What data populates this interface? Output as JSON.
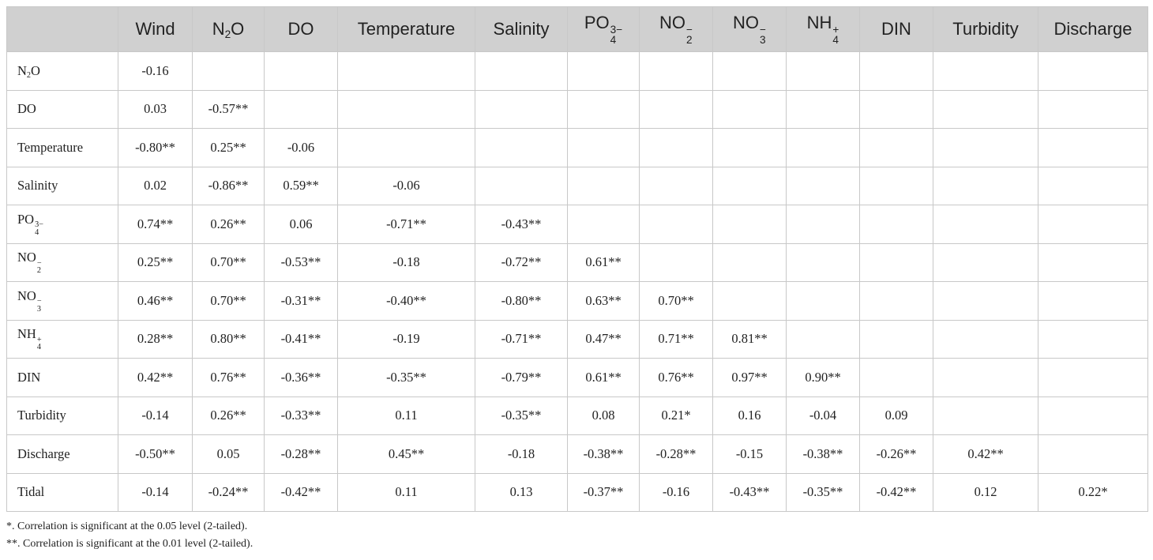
{
  "table": {
    "corner": "",
    "columns": [
      {
        "base": "Wind"
      },
      {
        "base": "N",
        "sub": "2",
        "tail": "O"
      },
      {
        "base": "DO"
      },
      {
        "base": "Temperature"
      },
      {
        "base": "Salinity"
      },
      {
        "base": "PO",
        "sup": "3−",
        "sub": "4"
      },
      {
        "base": "NO",
        "sup": "−",
        "sub": "2"
      },
      {
        "base": "NO",
        "sup": "−",
        "sub": "3"
      },
      {
        "base": "NH",
        "sup": "+",
        "sub": "4"
      },
      {
        "base": "DIN"
      },
      {
        "base": "Turbidity"
      },
      {
        "base": "Discharge"
      }
    ],
    "rows": [
      {
        "label": {
          "base": "N",
          "sub": "2",
          "tail": "O"
        },
        "values": [
          "-0.16"
        ]
      },
      {
        "label": {
          "base": "DO"
        },
        "values": [
          "0.03",
          "-0.57**"
        ]
      },
      {
        "label": {
          "base": "Temperature"
        },
        "values": [
          "-0.80**",
          "0.25**",
          "-0.06"
        ]
      },
      {
        "label": {
          "base": "Salinity"
        },
        "values": [
          "0.02",
          "-0.86**",
          "0.59**",
          "-0.06"
        ]
      },
      {
        "label": {
          "base": "PO",
          "sup": "3−",
          "sub": "4"
        },
        "values": [
          "0.74**",
          "0.26**",
          "0.06",
          "-0.71**",
          "-0.43**"
        ]
      },
      {
        "label": {
          "base": "NO",
          "sup": "−",
          "sub": "2"
        },
        "values": [
          "0.25**",
          "0.70**",
          "-0.53**",
          "-0.18",
          "-0.72**",
          "0.61**"
        ]
      },
      {
        "label": {
          "base": "NO",
          "sup": "−",
          "sub": "3"
        },
        "values": [
          "0.46**",
          "0.70**",
          "-0.31**",
          "-0.40**",
          "-0.80**",
          "0.63**",
          "0.70**"
        ]
      },
      {
        "label": {
          "base": "NH",
          "sup": "+",
          "sub": "4"
        },
        "values": [
          "0.28**",
          "0.80**",
          "-0.41**",
          "-0.19",
          "-0.71**",
          "0.47**",
          "0.71**",
          "0.81**"
        ]
      },
      {
        "label": {
          "base": "DIN"
        },
        "values": [
          "0.42**",
          "0.76**",
          "-0.36**",
          "-0.35**",
          "-0.79**",
          "0.61**",
          "0.76**",
          "0.97**",
          "0.90**"
        ]
      },
      {
        "label": {
          "base": "Turbidity"
        },
        "values": [
          "-0.14",
          "0.26**",
          "-0.33**",
          "0.11",
          "-0.35**",
          "0.08",
          "0.21*",
          "0.16",
          "-0.04",
          "0.09"
        ]
      },
      {
        "label": {
          "base": "Discharge"
        },
        "values": [
          "-0.50**",
          "0.05",
          "-0.28**",
          "0.45**",
          "-0.18",
          "-0.38**",
          "-0.28**",
          "-0.15",
          "-0.38**",
          "-0.26**",
          "0.42**"
        ]
      },
      {
        "label": {
          "base": "Tidal"
        },
        "values": [
          "-0.14",
          "-0.24**",
          "-0.42**",
          "0.11",
          "0.13",
          "-0.37**",
          "-0.16",
          "-0.43**",
          "-0.35**",
          "-0.42**",
          "0.12",
          "0.22*"
        ]
      }
    ]
  },
  "footnotes": [
    "*. Correlation is significant at the 0.05 level (2-tailed).",
    "**. Correlation is significant at the 0.01 level (2-tailed)."
  ]
}
